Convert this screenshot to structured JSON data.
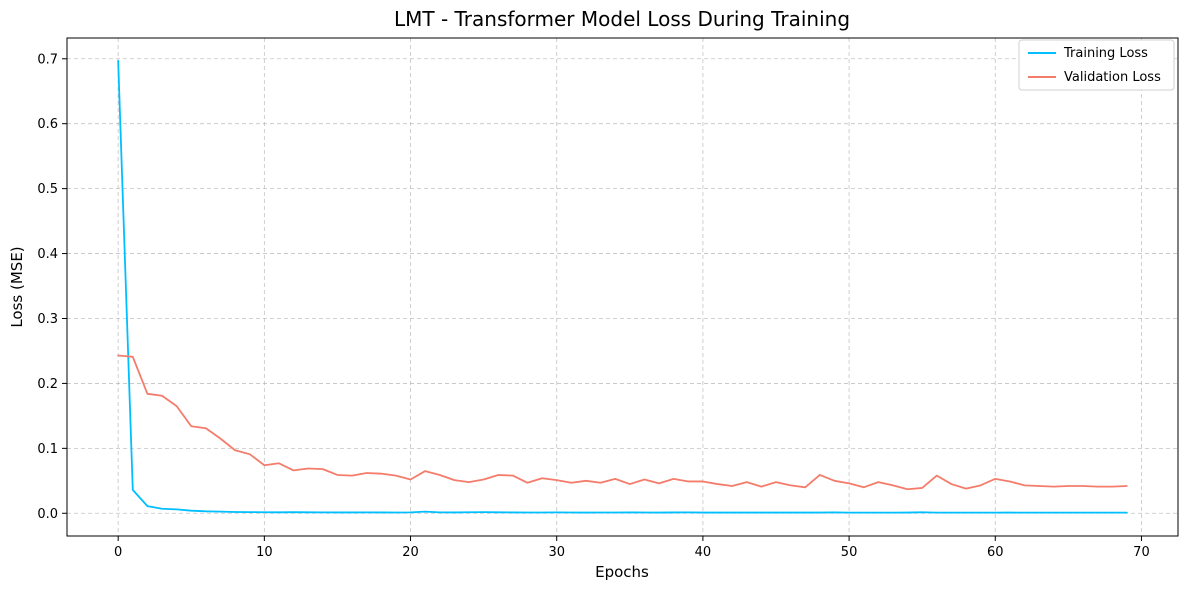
{
  "chart_data": {
    "type": "line",
    "title": "LMT - Transformer Model Loss During Training",
    "xlabel": "Epochs",
    "ylabel": "Loss (MSE)",
    "xlim": [
      -3.5,
      72.5
    ],
    "ylim": [
      -0.035,
      0.732
    ],
    "xticks": [
      0,
      10,
      20,
      30,
      40,
      50,
      60,
      70
    ],
    "xtick_labels": [
      "0",
      "10",
      "20",
      "30",
      "40",
      "50",
      "60",
      "70"
    ],
    "yticks": [
      0.0,
      0.1,
      0.2,
      0.3,
      0.4,
      0.5,
      0.6,
      0.7
    ],
    "ytick_labels": [
      "0.0",
      "0.1",
      "0.2",
      "0.3",
      "0.4",
      "0.5",
      "0.6",
      "0.7"
    ],
    "grid": true,
    "legend_position": "top-right",
    "series": [
      {
        "name": "Training Loss",
        "color": "#00bfff",
        "x": [
          0,
          1,
          2,
          3,
          4,
          5,
          6,
          7,
          8,
          9,
          10,
          11,
          12,
          13,
          14,
          15,
          16,
          17,
          18,
          19,
          20,
          21,
          22,
          23,
          24,
          25,
          26,
          27,
          28,
          29,
          30,
          31,
          32,
          33,
          34,
          35,
          36,
          37,
          38,
          39,
          40,
          41,
          42,
          43,
          44,
          45,
          46,
          47,
          48,
          49,
          50,
          51,
          52,
          53,
          54,
          55,
          56,
          57,
          58,
          59,
          60,
          61,
          62,
          63,
          64,
          65,
          66,
          67,
          68,
          69
        ],
        "values": [
          0.697,
          0.036,
          0.011,
          0.007,
          0.006,
          0.004,
          0.003,
          0.0025,
          0.002,
          0.0018,
          0.0016,
          0.0015,
          0.0017,
          0.0015,
          0.0014,
          0.0013,
          0.0013,
          0.0014,
          0.0013,
          0.0012,
          0.0014,
          0.0025,
          0.0014,
          0.0013,
          0.0016,
          0.0018,
          0.0015,
          0.0013,
          0.0012,
          0.0012,
          0.0014,
          0.0012,
          0.0011,
          0.0012,
          0.0012,
          0.0013,
          0.0012,
          0.0011,
          0.0013,
          0.0014,
          0.0011,
          0.0011,
          0.0011,
          0.0011,
          0.0011,
          0.0011,
          0.0011,
          0.0011,
          0.0011,
          0.0014,
          0.001,
          0.001,
          0.001,
          0.001,
          0.0011,
          0.0016,
          0.001,
          0.001,
          0.001,
          0.001,
          0.001,
          0.0011,
          0.001,
          0.001,
          0.001,
          0.001,
          0.001,
          0.001,
          0.001,
          0.001
        ]
      },
      {
        "name": "Validation Loss",
        "color": "#f47c6b",
        "x": [
          0,
          1,
          2,
          3,
          4,
          5,
          6,
          7,
          8,
          9,
          10,
          11,
          12,
          13,
          14,
          15,
          16,
          17,
          18,
          19,
          20,
          21,
          22,
          23,
          24,
          25,
          26,
          27,
          28,
          29,
          30,
          31,
          32,
          33,
          34,
          35,
          36,
          37,
          38,
          39,
          40,
          41,
          42,
          43,
          44,
          45,
          46,
          47,
          48,
          49,
          50,
          51,
          52,
          53,
          54,
          55,
          56,
          57,
          58,
          59,
          60,
          61,
          62,
          63,
          64,
          65,
          66,
          67,
          68,
          69
        ],
        "values": [
          0.243,
          0.241,
          0.184,
          0.181,
          0.165,
          0.134,
          0.131,
          0.115,
          0.097,
          0.091,
          0.074,
          0.077,
          0.066,
          0.069,
          0.068,
          0.059,
          0.058,
          0.062,
          0.061,
          0.058,
          0.052,
          0.065,
          0.059,
          0.051,
          0.048,
          0.052,
          0.059,
          0.058,
          0.047,
          0.054,
          0.051,
          0.047,
          0.05,
          0.047,
          0.053,
          0.045,
          0.052,
          0.046,
          0.053,
          0.049,
          0.049,
          0.045,
          0.042,
          0.048,
          0.041,
          0.048,
          0.043,
          0.04,
          0.059,
          0.05,
          0.046,
          0.04,
          0.048,
          0.043,
          0.037,
          0.039,
          0.058,
          0.045,
          0.038,
          0.043,
          0.053,
          0.049,
          0.043,
          0.042,
          0.041,
          0.042,
          0.042,
          0.041,
          0.041,
          0.042
        ]
      }
    ]
  }
}
